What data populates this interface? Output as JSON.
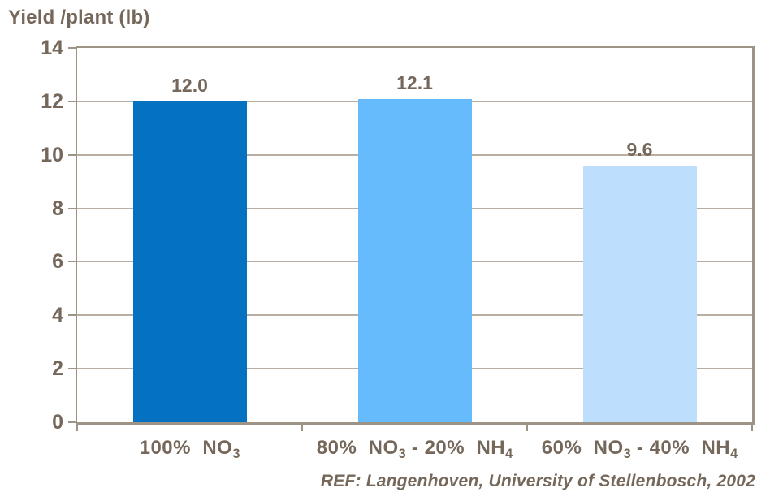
{
  "chart_data": {
    "type": "bar",
    "title": "Yield /plant (lb)",
    "categories": [
      "100%  NO₃",
      "80%  NO₃ - 20%  NH₄",
      "60%  NO₃ - 40%  NH₄"
    ],
    "categories_rich": [
      [
        {
          "t": "100%  NO"
        },
        {
          "t": "3",
          "sub": true
        }
      ],
      [
        {
          "t": "80%  NO"
        },
        {
          "t": "3",
          "sub": true
        },
        {
          "t": " - 20%  NH"
        },
        {
          "t": "4",
          "sub": true
        }
      ],
      [
        {
          "t": "60%  NO"
        },
        {
          "t": "3",
          "sub": true
        },
        {
          "t": " - 40%  NH"
        },
        {
          "t": "4",
          "sub": true
        }
      ]
    ],
    "values": [
      12.0,
      12.1,
      9.6
    ],
    "value_labels": [
      "12.0",
      "12.1",
      "9.6"
    ],
    "ylim": [
      0,
      14
    ],
    "yticks": [
      0,
      2,
      4,
      6,
      8,
      10,
      12,
      14
    ],
    "grid": true,
    "legend_position": "none",
    "xlabel": "",
    "ylabel": "",
    "bar_colors": [
      "#0471C1",
      "#66BBFD",
      "#BDDFFD"
    ],
    "annotation": "REF: Langenhoven, University of Stellenbosch, 2002"
  },
  "colors": {
    "text": "#75685B",
    "gridline": "#B8AEA2",
    "axis": "#9E9486",
    "background": "#FFFFFF"
  }
}
